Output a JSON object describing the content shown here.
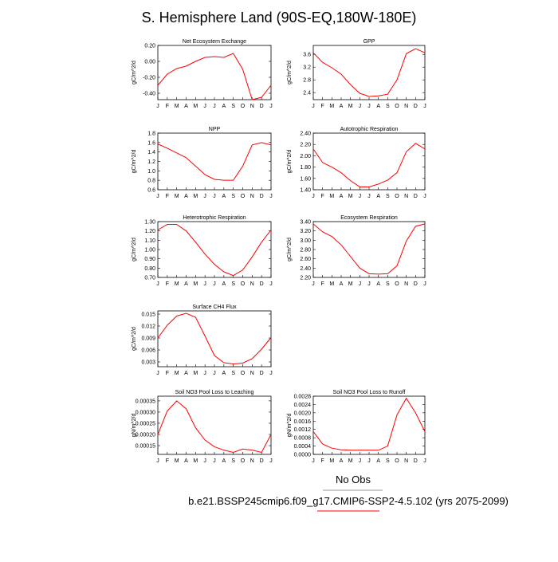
{
  "title": "S. Hemisphere Land (90S-EQ,180W-180E)",
  "legend_text": "No Obs",
  "caption": "b.e21.BSSP245cmip6.f09_g17.CMIP6-SSP2-4.5.102 (yrs 2075-2099)",
  "chart_data": [
    {
      "type": "line",
      "title": "Net Ecosystem Exchange",
      "ylabel": "gC/m^2/d",
      "color": "#ff0000",
      "categories": [
        "J",
        "F",
        "M",
        "A",
        "M",
        "J",
        "J",
        "A",
        "S",
        "O",
        "N",
        "D",
        "J"
      ],
      "values": [
        -0.3,
        -0.16,
        -0.09,
        -0.06,
        0.0,
        0.05,
        0.06,
        0.05,
        0.1,
        -0.1,
        -0.48,
        -0.45,
        -0.3
      ],
      "ylim": [
        -0.48,
        0.2
      ],
      "yticks": [
        {
          "value": -0.4,
          "label": "-0.40"
        },
        {
          "value": -0.2,
          "label": "-0.20"
        },
        {
          "value": 0,
          "label": "0.00"
        },
        {
          "value": 0.2,
          "label": "0.20"
        }
      ]
    },
    {
      "type": "line",
      "title": "GPP",
      "ylabel": "gC/m^2/d",
      "color": "#ff0000",
      "categories": [
        "J",
        "F",
        "M",
        "A",
        "M",
        "J",
        "J",
        "A",
        "S",
        "O",
        "N",
        "D",
        "J"
      ],
      "values": [
        3.65,
        3.35,
        3.18,
        2.98,
        2.65,
        2.38,
        2.28,
        2.3,
        2.35,
        2.8,
        3.62,
        3.78,
        3.65
      ],
      "ylim": [
        2.18,
        3.88
      ],
      "yticks": [
        2.4,
        2.8,
        3.2,
        3.6
      ]
    },
    {
      "type": "line",
      "title": "NPP",
      "ylabel": "gC/m^2/d",
      "color": "#ff0000",
      "categories": [
        "J",
        "F",
        "M",
        "A",
        "M",
        "J",
        "J",
        "A",
        "S",
        "O",
        "N",
        "D",
        "J"
      ],
      "values": [
        1.57,
        1.48,
        1.38,
        1.28,
        1.1,
        0.92,
        0.82,
        0.8,
        0.8,
        1.1,
        1.55,
        1.6,
        1.55
      ],
      "ylim": [
        0.6,
        1.8
      ],
      "yticks": [
        0.6,
        0.8,
        {
          "value": 1,
          "label": "1.0"
        },
        1.2,
        1.4,
        1.6,
        1.8
      ]
    },
    {
      "type": "line",
      "title": "Autotrophic Respiration",
      "ylabel": "gC/m^2/d",
      "color": "#ff0000",
      "categories": [
        "J",
        "F",
        "M",
        "A",
        "M",
        "J",
        "J",
        "A",
        "S",
        "O",
        "N",
        "D",
        "J"
      ],
      "values": [
        2.12,
        1.88,
        1.8,
        1.7,
        1.56,
        1.45,
        1.45,
        1.5,
        1.57,
        1.7,
        2.07,
        2.22,
        2.12
      ],
      "ylim": [
        1.4,
        2.4
      ],
      "yticks": [
        {
          "value": 1.4,
          "label": "1.40"
        },
        {
          "value": 1.6,
          "label": "1.60"
        },
        {
          "value": 1.8,
          "label": "1.80"
        },
        {
          "value": 2,
          "label": "2.00"
        },
        {
          "value": 2.2,
          "label": "2.20"
        },
        {
          "value": 2.4,
          "label": "2.40"
        }
      ]
    },
    {
      "type": "line",
      "title": "Heterotrophic Respiration",
      "ylabel": "gC/m^2/d",
      "color": "#ff0000",
      "categories": [
        "J",
        "F",
        "M",
        "A",
        "M",
        "J",
        "J",
        "A",
        "S",
        "O",
        "N",
        "D",
        "J"
      ],
      "values": [
        1.21,
        1.27,
        1.27,
        1.2,
        1.08,
        0.95,
        0.84,
        0.76,
        0.72,
        0.78,
        0.92,
        1.08,
        1.21
      ],
      "ylim": [
        0.7,
        1.3
      ],
      "yticks": [
        {
          "value": 0.7,
          "label": "0.70"
        },
        {
          "value": 0.8,
          "label": "0.80"
        },
        {
          "value": 0.9,
          "label": "0.90"
        },
        {
          "value": 1,
          "label": "1.00"
        },
        {
          "value": 1.1,
          "label": "1.10"
        },
        {
          "value": 1.2,
          "label": "1.20"
        },
        {
          "value": 1.3,
          "label": "1.30"
        }
      ]
    },
    {
      "type": "line",
      "title": "Ecosystem Respiration",
      "ylabel": "gC/m^2/d",
      "color": "#ff0000",
      "categories": [
        "J",
        "F",
        "M",
        "A",
        "M",
        "J",
        "J",
        "A",
        "S",
        "O",
        "N",
        "D",
        "J"
      ],
      "values": [
        3.35,
        3.18,
        3.08,
        2.9,
        2.65,
        2.4,
        2.28,
        2.27,
        2.28,
        2.45,
        2.98,
        3.3,
        3.35
      ],
      "ylim": [
        2.2,
        3.4
      ],
      "yticks": [
        {
          "value": 2.2,
          "label": "2.20"
        },
        {
          "value": 2.4,
          "label": "2.40"
        },
        {
          "value": 2.6,
          "label": "2.60"
        },
        {
          "value": 2.8,
          "label": "2.80"
        },
        {
          "value": 3,
          "label": "3.00"
        },
        {
          "value": 3.2,
          "label": "3.20"
        },
        {
          "value": 3.4,
          "label": "3.40"
        }
      ]
    },
    {
      "type": "line",
      "title": "Surface CH4 Flux",
      "ylabel": "gC/m^2/d",
      "color": "#ff0000",
      "categories": [
        "J",
        "F",
        "M",
        "A",
        "M",
        "J",
        "J",
        "A",
        "S",
        "O",
        "N",
        "D",
        "J"
      ],
      "values": [
        0.009,
        0.0122,
        0.0145,
        0.0152,
        0.0142,
        0.0095,
        0.0046,
        0.0028,
        0.0025,
        0.0027,
        0.0038,
        0.0062,
        0.0091
      ],
      "ylim": [
        0.0018,
        0.0158
      ],
      "yticks": [
        0.003,
        0.006,
        0.009,
        0.012,
        0.015
      ]
    },
    {
      "type": "line",
      "title": "Soil NO3 Pool Loss to Leaching",
      "ylabel": "gN/m^2/d",
      "color": "#ff0000",
      "categories": [
        "J",
        "F",
        "M",
        "A",
        "M",
        "J",
        "J",
        "A",
        "S",
        "O",
        "N",
        "D",
        "J"
      ],
      "values": [
        0.0002,
        0.000305,
        0.00035,
        0.000315,
        0.00023,
        0.000175,
        0.000145,
        0.00013,
        0.00012,
        0.000135,
        0.00013,
        0.00012,
        0.0002
      ],
      "ylim": [
        0.000111,
        0.000371
      ],
      "yticks": [
        0.00015,
        {
          "value": 0.0002,
          "label": "0.00020"
        },
        0.00025,
        {
          "value": 0.0003,
          "label": "0.00030"
        },
        0.00035
      ]
    },
    {
      "type": "line",
      "title": "Soil NO3 Pool Loss to Runoff",
      "ylabel": "gN/m^2/d",
      "color": "#ff0000",
      "categories": [
        "J",
        "F",
        "M",
        "A",
        "M",
        "J",
        "J",
        "A",
        "S",
        "O",
        "N",
        "D",
        "J"
      ],
      "values": [
        0.0011,
        0.0005,
        0.0003,
        0.00022,
        0.0002,
        0.0002,
        0.0002,
        0.0002,
        0.0004,
        0.0019,
        0.0027,
        0.002,
        0.0011
      ],
      "ylim": [
        0,
        0.0028
      ],
      "yticks": [
        {
          "value": 0,
          "label": "0.0000"
        },
        {
          "value": 0.0004,
          "label": "0.0004"
        },
        {
          "value": 0.0008,
          "label": "0.0008"
        },
        {
          "value": 0.0012,
          "label": "0.0012"
        },
        {
          "value": 0.0016,
          "label": "0.0016"
        },
        {
          "value": 0.002,
          "label": "0.0020"
        },
        {
          "value": 0.0024,
          "label": "0.0024"
        },
        {
          "value": 0.0028,
          "label": "0.0028"
        }
      ]
    }
  ]
}
